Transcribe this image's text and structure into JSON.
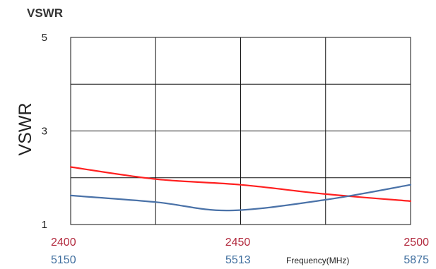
{
  "chart_data": {
    "type": "line",
    "title": "VSWR",
    "ylabel": "VSWR",
    "xlabel": "Frequency(MHz)",
    "ylim": [
      1,
      5
    ],
    "yticks": [
      "1",
      "3",
      "5"
    ],
    "grid": true,
    "x_axes": [
      {
        "range": [
          2400,
          2500
        ],
        "tick_values": [
          2400,
          2450,
          2500
        ],
        "tick_labels": [
          "2400",
          "2450",
          "2500"
        ],
        "color": "#b22a3e"
      },
      {
        "range": [
          5150,
          5875
        ],
        "tick_values": [
          5150,
          5513,
          5875
        ],
        "tick_labels": [
          "5150",
          "5513",
          "5875"
        ],
        "color": "#3f6e9e"
      }
    ],
    "series": [
      {
        "axis": 0,
        "color": "#ff2020",
        "x": [
          2400,
          2425,
          2450,
          2475,
          2500
        ],
        "y": [
          2.23,
          1.97,
          1.85,
          1.65,
          1.5
        ]
      },
      {
        "axis": 1,
        "color": "#4a72a8",
        "x": [
          5150,
          5331,
          5488,
          5694,
          5875
        ],
        "y": [
          1.62,
          1.48,
          1.3,
          1.53,
          1.85
        ]
      }
    ]
  }
}
